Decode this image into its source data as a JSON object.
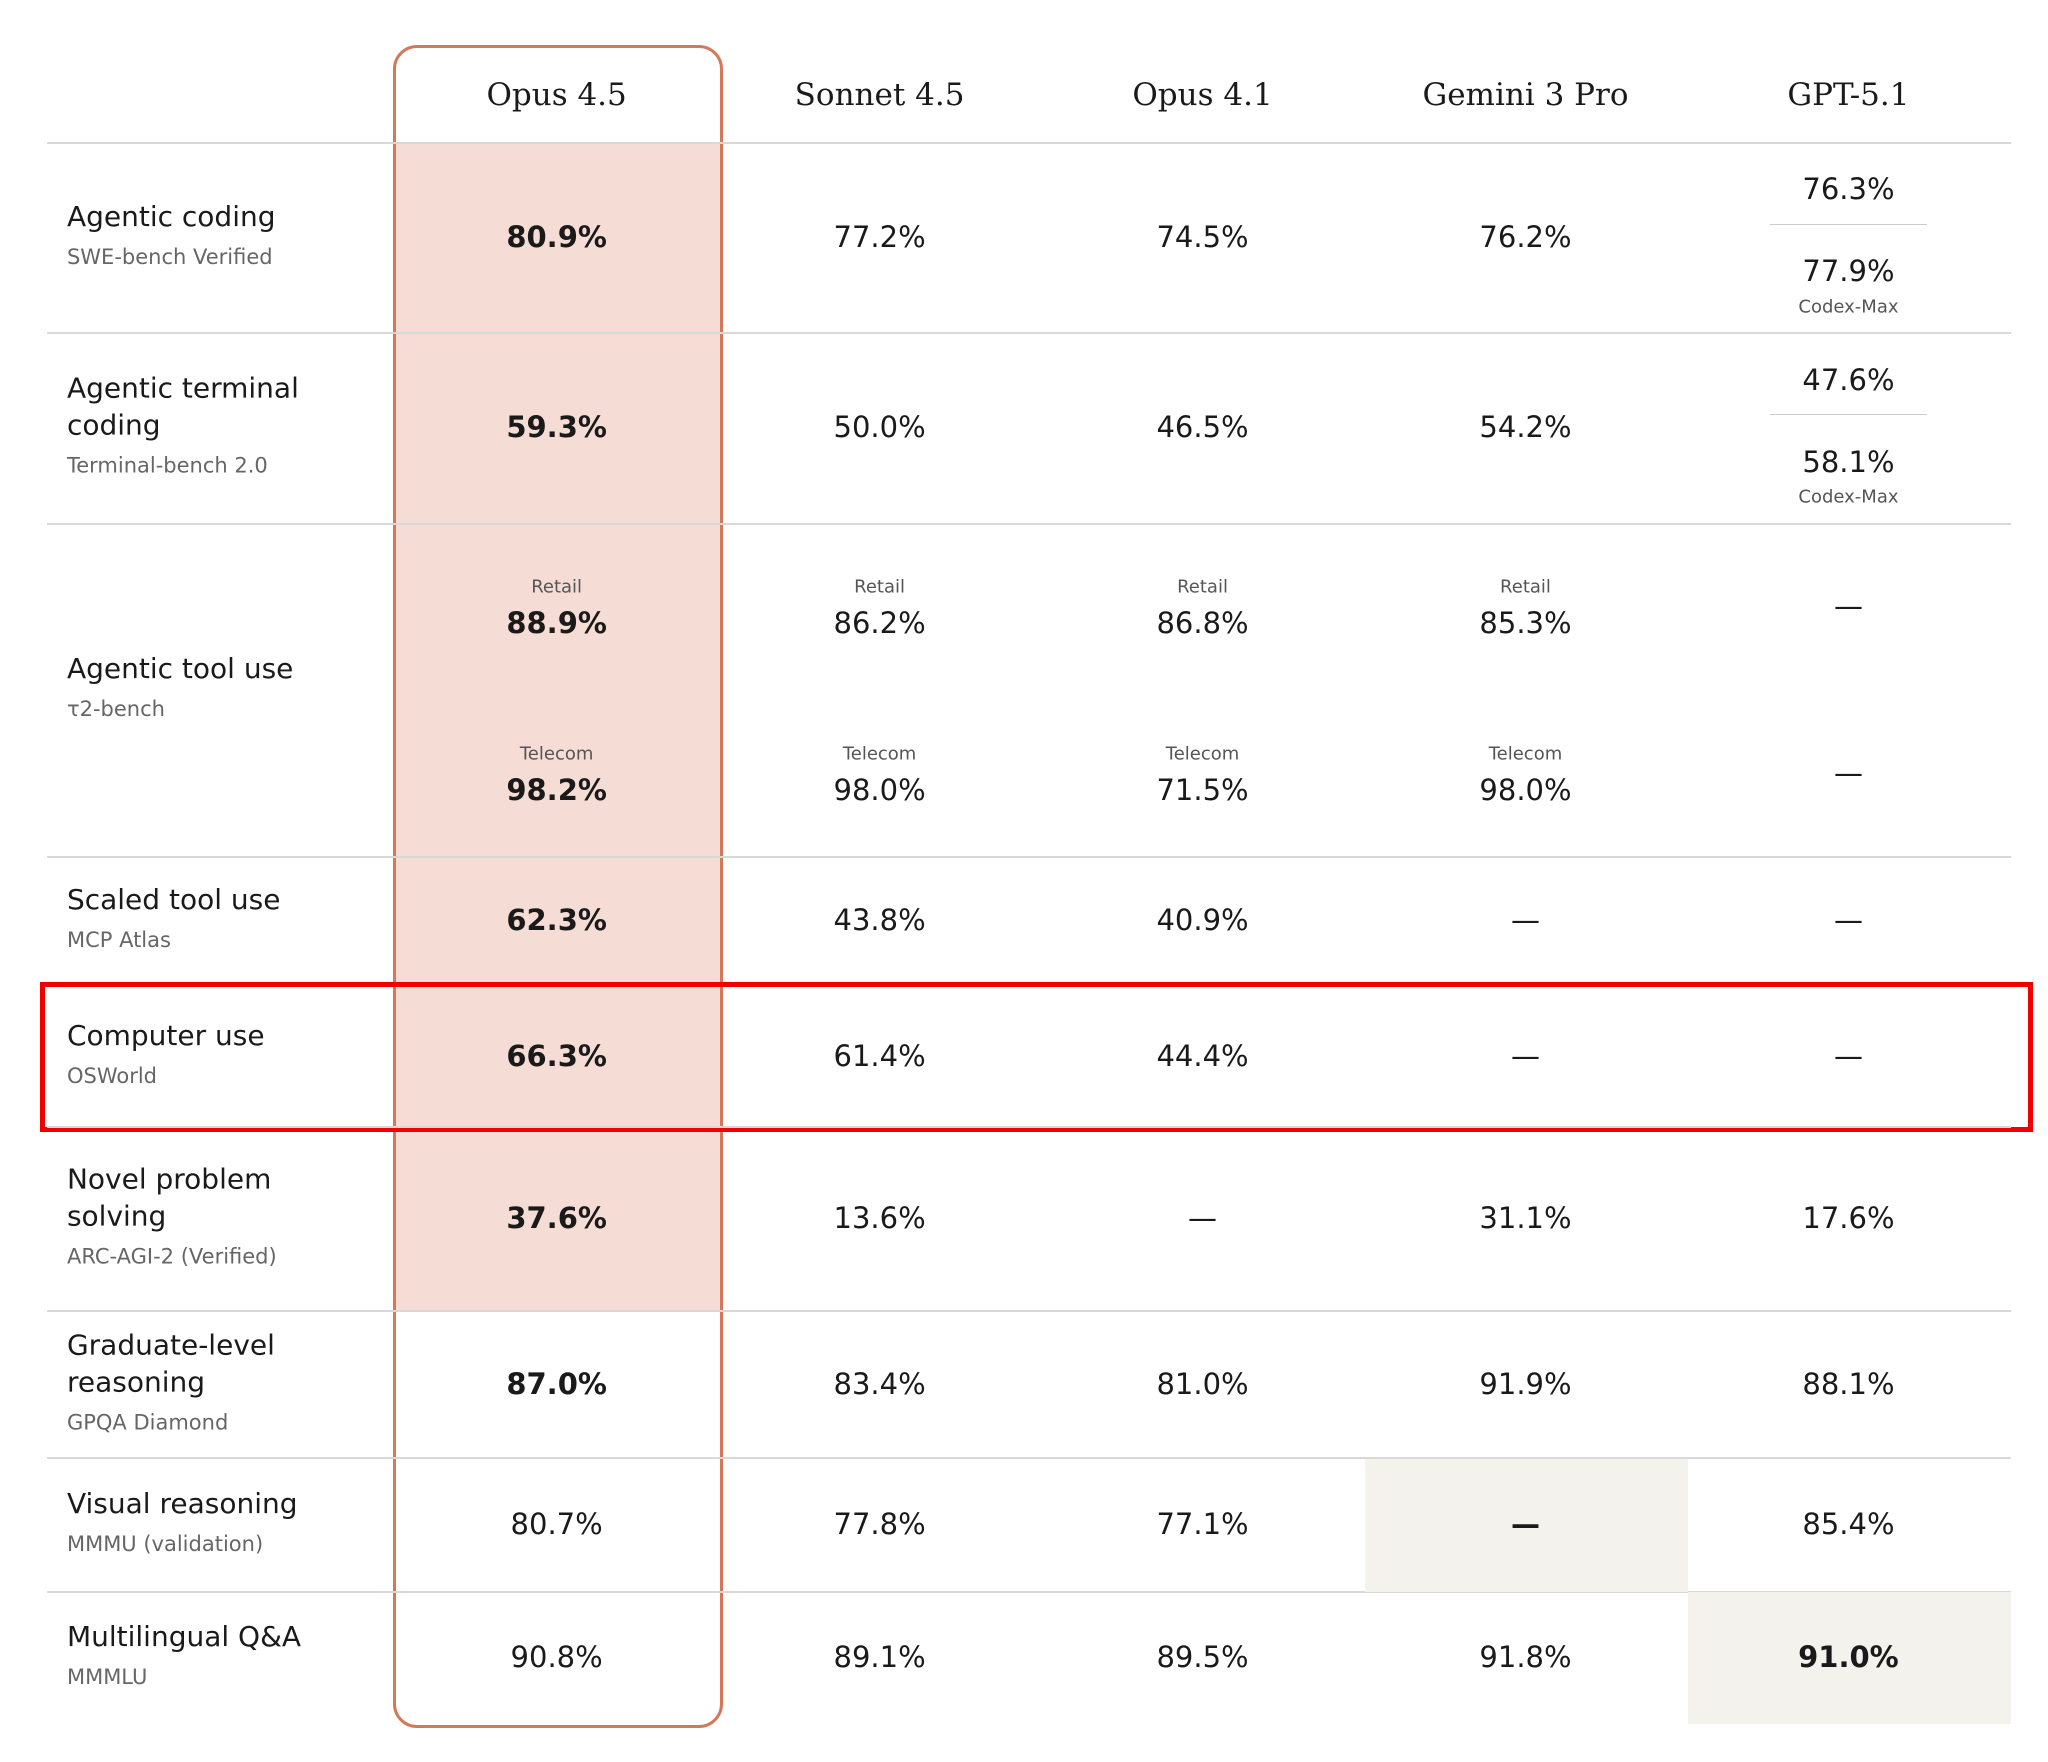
{
  "table": {
    "columns": [
      "Opus 4.5",
      "Sonnet 4.5",
      "Opus 4.1",
      "Gemini 3 Pro",
      "GPT-5.1"
    ],
    "rows": [
      {
        "label": "Agentic coding",
        "sub": "SWE-bench Verified",
        "cells": [
          "80.9%",
          "77.2%",
          "74.5%",
          "76.2%",
          {
            "parts": [
              {
                "value": "76.3%"
              },
              {
                "value": "77.9%",
                "caption": "Codex-Max"
              }
            ]
          }
        ]
      },
      {
        "label": "Agentic terminal coding",
        "sub": "Terminal-bench 2.0",
        "cells": [
          "59.3%",
          "50.0%",
          "46.5%",
          "54.2%",
          {
            "parts": [
              {
                "value": "47.6%"
              },
              {
                "value": "58.1%",
                "caption": "Codex-Max"
              }
            ]
          }
        ]
      },
      {
        "label": "Agentic tool use",
        "sub": "τ2-bench",
        "cells": [
          {
            "parts": [
              {
                "label": "Retail",
                "value": "88.9%"
              },
              {
                "label": "Telecom",
                "value": "98.2%"
              }
            ]
          },
          {
            "parts": [
              {
                "label": "Retail",
                "value": "86.2%"
              },
              {
                "label": "Telecom",
                "value": "98.0%"
              }
            ]
          },
          {
            "parts": [
              {
                "label": "Retail",
                "value": "86.8%"
              },
              {
                "label": "Telecom",
                "value": "71.5%"
              }
            ]
          },
          {
            "parts": [
              {
                "label": "Retail",
                "value": "85.3%"
              },
              {
                "label": "Telecom",
                "value": "98.0%"
              }
            ]
          },
          {
            "parts": [
              {
                "value": "—"
              },
              {
                "value": "—"
              }
            ]
          }
        ]
      },
      {
        "label": "Scaled tool use",
        "sub": "MCP Atlas",
        "cells": [
          "62.3%",
          "43.8%",
          "40.9%",
          "—",
          "—"
        ]
      },
      {
        "label": "Computer use",
        "sub": "OSWorld",
        "cells": [
          "66.3%",
          "61.4%",
          "44.4%",
          "—",
          "—"
        ]
      },
      {
        "label": "Novel problem solving",
        "sub": "ARC-AGI-2 (Verified)",
        "cells": [
          "37.6%",
          "13.6%",
          "—",
          "31.1%",
          "17.6%"
        ]
      },
      {
        "label": "Graduate-level reasoning",
        "sub": "GPQA Diamond",
        "cells": [
          "87.0%",
          "83.4%",
          "81.0%",
          "91.9%",
          "88.1%"
        ]
      },
      {
        "label": "Visual reasoning",
        "sub": "MMMU (validation)",
        "cells": [
          "80.7%",
          "77.8%",
          "77.1%",
          "—",
          "85.4%"
        ]
      },
      {
        "label": "Multilingual Q&A",
        "sub": "MMMLU",
        "cells": [
          "90.8%",
          "89.1%",
          "89.5%",
          "91.8%",
          "91.0%"
        ]
      }
    ]
  }
}
